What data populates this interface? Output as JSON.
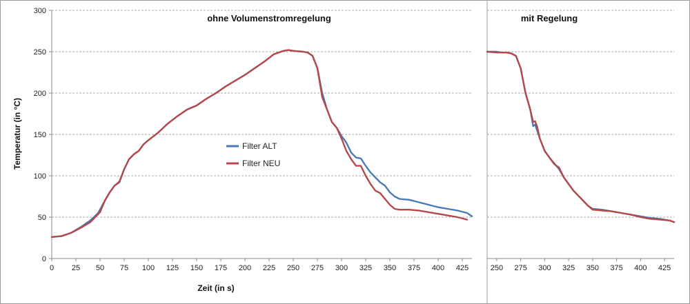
{
  "chart_data": [
    {
      "type": "line",
      "title": "ohne Volumenstromregelung",
      "xlabel": "Zeit (in s)",
      "ylabel": "Temperatur (in °C)",
      "xlim": [
        0,
        435
      ],
      "ylim": [
        0,
        300
      ],
      "xticks": [
        0,
        25,
        50,
        75,
        100,
        125,
        150,
        175,
        200,
        225,
        250,
        275,
        300,
        325,
        350,
        375,
        400,
        425
      ],
      "yticks": [
        0,
        50,
        100,
        150,
        200,
        250,
        300
      ],
      "grid": "horizontal dashed",
      "legend": "middle-left",
      "series": [
        {
          "name": "Filter ALT",
          "color": "#4a7ab5",
          "x": [
            0,
            10,
            20,
            30,
            40,
            48,
            55,
            60,
            65,
            70,
            75,
            80,
            85,
            90,
            95,
            100,
            110,
            120,
            130,
            140,
            150,
            160,
            170,
            180,
            190,
            200,
            210,
            220,
            230,
            240,
            245,
            250,
            260,
            265,
            270,
            275,
            280,
            285,
            290,
            295,
            300,
            305,
            310,
            315,
            320,
            325,
            330,
            335,
            340,
            345,
            350,
            355,
            360,
            370,
            380,
            390,
            400,
            410,
            420,
            430,
            435
          ],
          "y": [
            26,
            27,
            31,
            38,
            46,
            55,
            70,
            80,
            88,
            92,
            108,
            120,
            126,
            130,
            138,
            143,
            152,
            163,
            172,
            180,
            185,
            193,
            200,
            208,
            215,
            222,
            230,
            238,
            247,
            251,
            252,
            251,
            250,
            249,
            245,
            230,
            200,
            180,
            165,
            158,
            148,
            140,
            128,
            122,
            121,
            112,
            104,
            98,
            92,
            88,
            80,
            75,
            72,
            71,
            68,
            65,
            62,
            60,
            58,
            55,
            51
          ]
        },
        {
          "name": "Filter NEU",
          "color": "#b5484a",
          "x": [
            0,
            10,
            20,
            30,
            40,
            50,
            55,
            60,
            65,
            70,
            75,
            80,
            85,
            90,
            95,
            100,
            110,
            120,
            130,
            140,
            150,
            160,
            170,
            180,
            190,
            200,
            210,
            220,
            230,
            240,
            245,
            250,
            260,
            265,
            270,
            275,
            280,
            285,
            290,
            295,
            300,
            305,
            310,
            315,
            320,
            325,
            330,
            335,
            340,
            345,
            350,
            355,
            360,
            370,
            380,
            390,
            400,
            410,
            420,
            430
          ],
          "y": [
            26,
            27,
            31,
            37,
            44,
            56,
            70,
            80,
            88,
            93,
            108,
            120,
            126,
            130,
            138,
            143,
            152,
            163,
            172,
            180,
            185,
            193,
            200,
            208,
            215,
            222,
            230,
            238,
            247,
            251,
            252,
            251,
            250,
            249,
            245,
            230,
            195,
            180,
            165,
            158,
            145,
            130,
            120,
            112,
            112,
            100,
            90,
            82,
            79,
            72,
            65,
            60,
            59,
            59,
            58,
            56,
            54,
            52,
            50,
            47
          ]
        }
      ]
    },
    {
      "type": "line",
      "title": "mit Regelung",
      "xlabel": "",
      "ylabel": "",
      "xlim": [
        240,
        435
      ],
      "ylim": [
        0,
        300
      ],
      "xticks": [
        250,
        275,
        300,
        325,
        350,
        375,
        400,
        425
      ],
      "grid": "horizontal dashed",
      "series": [
        {
          "name": "Filter ALT",
          "color": "#4a7ab5",
          "x": [
            240,
            250,
            255,
            260,
            265,
            270,
            275,
            280,
            285,
            288,
            290,
            292,
            295,
            300,
            305,
            310,
            315,
            320,
            325,
            330,
            335,
            340,
            345,
            350,
            360,
            370,
            380,
            390,
            400,
            410,
            420,
            430,
            435
          ],
          "y": [
            250,
            250,
            249,
            249,
            248,
            245,
            230,
            200,
            180,
            160,
            162,
            155,
            145,
            130,
            122,
            115,
            108,
            98,
            90,
            82,
            76,
            70,
            64,
            60,
            59,
            57,
            55,
            53,
            51,
            49,
            48,
            46,
            44
          ]
        },
        {
          "name": "Filter NEU",
          "color": "#b5484a",
          "x": [
            240,
            250,
            255,
            260,
            265,
            270,
            275,
            280,
            285,
            288,
            290,
            292,
            295,
            300,
            305,
            310,
            315,
            320,
            325,
            330,
            335,
            340,
            345,
            350,
            360,
            370,
            380,
            390,
            400,
            410,
            420,
            430,
            435
          ],
          "y": [
            250,
            249,
            249,
            249,
            248,
            245,
            230,
            200,
            180,
            165,
            166,
            160,
            145,
            130,
            122,
            114,
            110,
            98,
            90,
            82,
            76,
            70,
            64,
            59,
            58,
            57,
            55,
            53,
            50,
            48,
            47,
            46,
            44
          ]
        }
      ]
    }
  ]
}
